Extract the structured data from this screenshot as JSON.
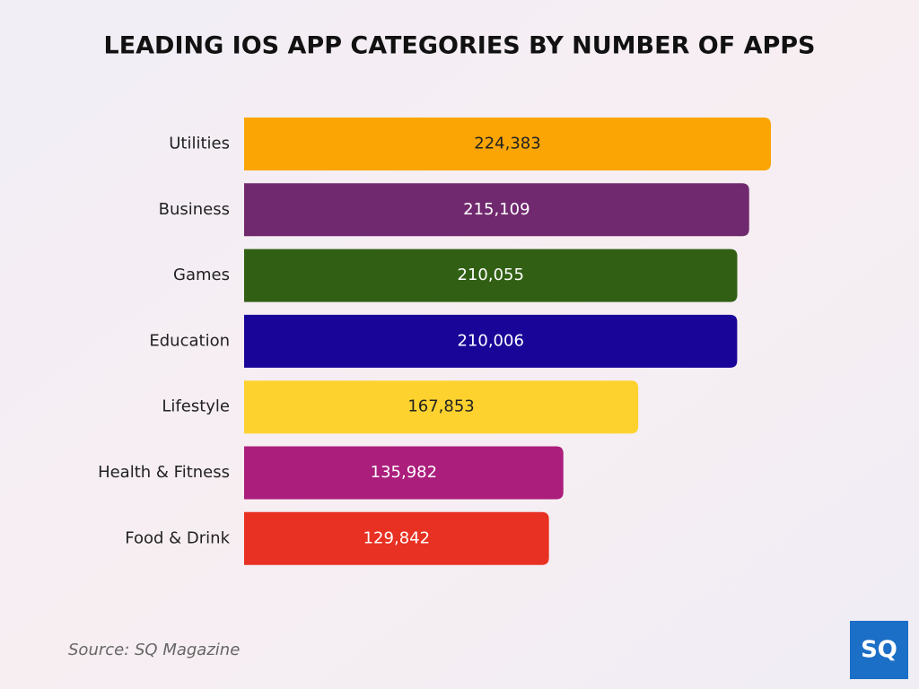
{
  "chart_data": {
    "type": "hbar",
    "title": "LEADING IOS APP CATEGORIES BY NUMBER OF APPS",
    "categories": [
      "Utilities",
      "Business",
      "Games",
      "Education",
      "Lifestyle",
      "Health & Fitness",
      "Food & Drink"
    ],
    "values": [
      224383,
      215109,
      210055,
      210006,
      167853,
      135982,
      129842
    ],
    "value_labels": [
      "224,383",
      "215,109",
      "210,055",
      "210,006",
      "167,853",
      "135,982",
      "129,842"
    ],
    "colors": [
      "#fba504",
      "#70296e",
      "#316014",
      "#1a0599",
      "#fed22e",
      "#ab1e7c",
      "#e83122"
    ],
    "source": "Source: SQ Magazine"
  },
  "logo": "SQ"
}
